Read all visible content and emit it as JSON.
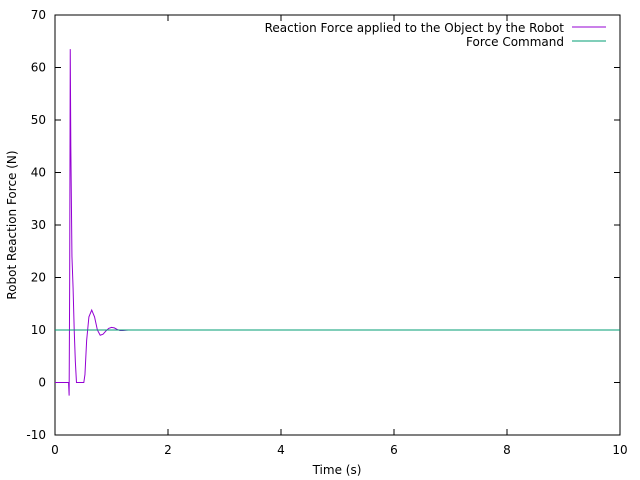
{
  "chart_data": {
    "type": "line",
    "title": "",
    "xlabel": "Time (s)",
    "ylabel": "Robot Reaction Force (N)",
    "xlim": [
      0,
      10
    ],
    "ylim": [
      -10,
      70
    ],
    "xticks": [
      0,
      2,
      4,
      6,
      8,
      10
    ],
    "yticks": [
      -10,
      0,
      10,
      20,
      30,
      40,
      50,
      60,
      70
    ],
    "grid": false,
    "legend_position": "top-right",
    "series": [
      {
        "name": "Reaction Force applied to the Object by the Robot",
        "color": "#9400d3",
        "x": [
          0,
          0.24,
          0.25,
          0.26,
          0.27,
          0.28,
          0.3,
          0.32,
          0.34,
          0.36,
          0.38,
          0.4,
          0.42,
          0.45,
          0.48,
          0.51,
          0.53,
          0.56,
          0.6,
          0.65,
          0.7,
          0.75,
          0.8,
          0.85,
          0.9,
          0.95,
          1.0,
          1.05,
          1.1,
          1.15,
          1.2,
          1.3,
          1.4,
          1.5,
          2.0,
          3.0,
          4.0,
          5.0,
          6.0,
          7.0,
          8.0,
          9.0,
          10.0
        ],
        "y": [
          0,
          0,
          -2.5,
          20,
          63.5,
          45,
          24,
          18,
          10,
          4,
          0,
          0,
          0,
          0,
          0,
          0,
          1.5,
          8,
          12.5,
          13.8,
          12.5,
          10,
          9,
          9.2,
          9.8,
          10.3,
          10.5,
          10.4,
          10.1,
          9.9,
          9.9,
          10,
          10,
          10,
          10,
          10,
          10,
          10,
          10,
          10,
          10,
          10,
          10
        ]
      },
      {
        "name": "Force Command",
        "color": "#009e73",
        "x": [
          0,
          10
        ],
        "y": [
          10,
          10
        ]
      }
    ]
  }
}
